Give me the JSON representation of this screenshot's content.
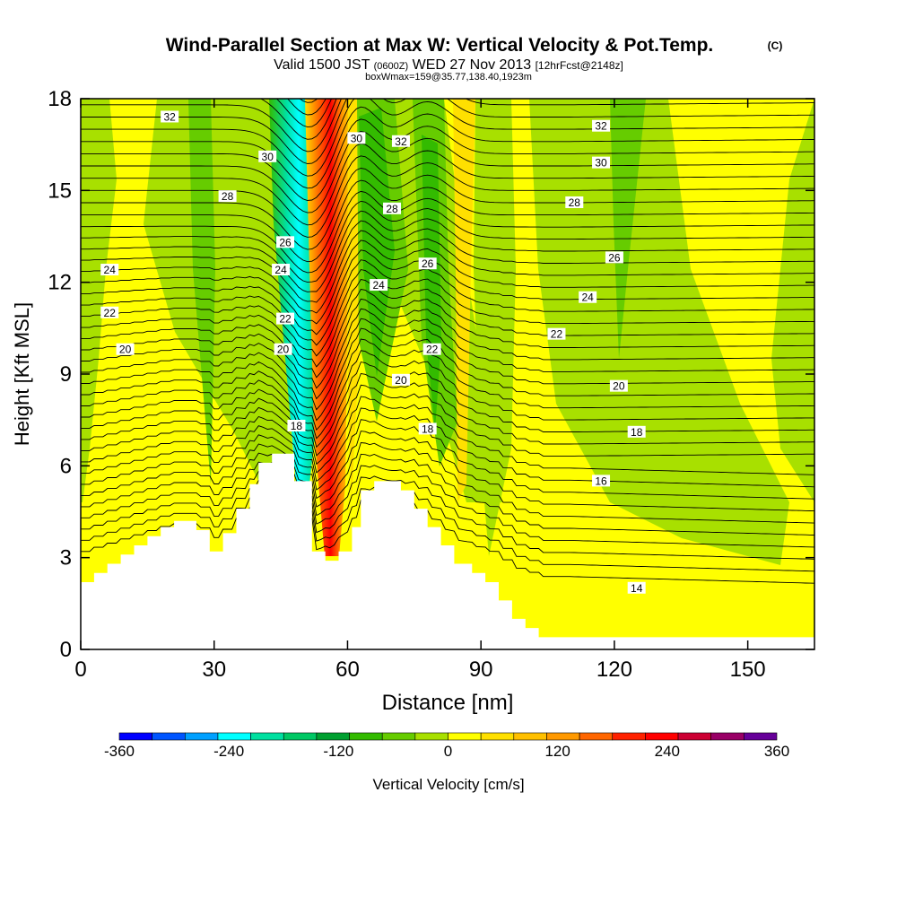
{
  "chart_data": {
    "type": "contour",
    "title": "Wind-Parallel Section at Max W: Vertical Velocity & Pot.Temp.",
    "title_mark": "(C)",
    "subtitle": {
      "valid": "Valid 1500 JST",
      "utc": "(0600Z)",
      "date": "WED 27 Nov 2013",
      "forecast": "[12hrFcst@2148z]"
    },
    "box_note": "boxWmax=159@35.77,138.40,1923m",
    "xlabel": "Distance [nm]",
    "ylabel": "Height [Kft MSL]",
    "xlim": [
      0,
      165
    ],
    "ylim": [
      0,
      18
    ],
    "x_ticks": [
      "0",
      "30",
      "60",
      "90",
      "120",
      "150"
    ],
    "y_ticks": [
      "0",
      "3",
      "6",
      "9",
      "12",
      "15",
      "18"
    ],
    "colorbar": {
      "label": "Vertical Velocity [cm/s]",
      "tick_labels": [
        "-360",
        "-240",
        "-120",
        "0",
        "120",
        "240",
        "360"
      ],
      "colors": [
        "#0000ff",
        "#0055ff",
        "#00a0ff",
        "#00ffff",
        "#00e0a0",
        "#00c864",
        "#00a030",
        "#33bb00",
        "#66cc00",
        "#a8e000",
        "#ffff00",
        "#ffe000",
        "#ffc000",
        "#ff9900",
        "#ff6600",
        "#ff2200",
        "#ff0000",
        "#cc0033",
        "#990066",
        "#660099"
      ]
    },
    "theta_label_units": "C",
    "theta_labels": [
      {
        "text": "32",
        "x": 20,
        "y": 17.4
      },
      {
        "text": "30",
        "x": 42,
        "y": 16.1
      },
      {
        "text": "28",
        "x": 33,
        "y": 14.8
      },
      {
        "text": "24",
        "x": 6.5,
        "y": 12.4
      },
      {
        "text": "22",
        "x": 6.5,
        "y": 11.0
      },
      {
        "text": "20",
        "x": 10,
        "y": 9.8
      },
      {
        "text": "26",
        "x": 46,
        "y": 13.3
      },
      {
        "text": "24",
        "x": 45,
        "y": 12.4
      },
      {
        "text": "22",
        "x": 46,
        "y": 10.8
      },
      {
        "text": "20",
        "x": 45.5,
        "y": 9.8
      },
      {
        "text": "18",
        "x": 48.5,
        "y": 7.3
      },
      {
        "text": "30",
        "x": 62,
        "y": 16.7
      },
      {
        "text": "32",
        "x": 72,
        "y": 16.6
      },
      {
        "text": "28",
        "x": 70,
        "y": 14.4
      },
      {
        "text": "26",
        "x": 78,
        "y": 12.6
      },
      {
        "text": "24",
        "x": 67,
        "y": 11.9
      },
      {
        "text": "22",
        "x": 79,
        "y": 9.8
      },
      {
        "text": "20",
        "x": 72,
        "y": 8.8
      },
      {
        "text": "18",
        "x": 78,
        "y": 7.2
      },
      {
        "text": "32",
        "x": 117,
        "y": 17.1
      },
      {
        "text": "30",
        "x": 117,
        "y": 15.9
      },
      {
        "text": "28",
        "x": 111,
        "y": 14.6
      },
      {
        "text": "26",
        "x": 120,
        "y": 12.8
      },
      {
        "text": "24",
        "x": 114,
        "y": 11.5
      },
      {
        "text": "22",
        "x": 107,
        "y": 10.3
      },
      {
        "text": "20",
        "x": 121,
        "y": 8.6
      },
      {
        "text": "18",
        "x": 125,
        "y": 7.1
      },
      {
        "text": "16",
        "x": 117,
        "y": 5.5
      },
      {
        "text": "14",
        "x": 125,
        "y": 2.0
      }
    ],
    "terrain": [
      [
        0,
        2.2
      ],
      [
        3,
        2.2
      ],
      [
        3,
        2.5
      ],
      [
        6,
        2.5
      ],
      [
        6,
        2.8
      ],
      [
        9,
        2.8
      ],
      [
        9,
        3.1
      ],
      [
        12,
        3.1
      ],
      [
        12,
        3.4
      ],
      [
        15,
        3.4
      ],
      [
        15,
        3.7
      ],
      [
        18,
        3.7
      ],
      [
        18,
        4.0
      ],
      [
        21,
        4.0
      ],
      [
        21,
        4.2
      ],
      [
        26,
        4.2
      ],
      [
        26,
        3.9
      ],
      [
        29,
        3.9
      ],
      [
        29,
        3.2
      ],
      [
        32,
        3.2
      ],
      [
        32,
        3.8
      ],
      [
        35,
        3.8
      ],
      [
        35,
        4.6
      ],
      [
        38,
        4.6
      ],
      [
        38,
        5.4
      ],
      [
        40,
        5.4
      ],
      [
        40,
        6.1
      ],
      [
        43,
        6.1
      ],
      [
        43,
        6.4
      ],
      [
        48,
        6.4
      ],
      [
        48,
        5.5
      ],
      [
        52,
        5.5
      ],
      [
        52,
        3.2
      ],
      [
        55,
        3.2
      ],
      [
        55,
        2.9
      ],
      [
        58,
        2.9
      ],
      [
        58,
        3.2
      ],
      [
        61,
        3.2
      ],
      [
        61,
        4.0
      ],
      [
        63,
        4.0
      ],
      [
        63,
        5.2
      ],
      [
        66,
        5.2
      ],
      [
        66,
        5.5
      ],
      [
        72,
        5.5
      ],
      [
        72,
        5.2
      ],
      [
        75,
        5.2
      ],
      [
        75,
        4.6
      ],
      [
        78,
        4.6
      ],
      [
        78,
        4.0
      ],
      [
        81,
        4.0
      ],
      [
        81,
        3.4
      ],
      [
        84,
        3.4
      ],
      [
        84,
        2.8
      ],
      [
        88,
        2.8
      ],
      [
        88,
        2.5
      ],
      [
        91,
        2.5
      ],
      [
        91,
        2.2
      ],
      [
        94,
        2.2
      ],
      [
        94,
        1.6
      ],
      [
        97,
        1.6
      ],
      [
        97,
        1.0
      ],
      [
        100,
        1.0
      ],
      [
        100,
        0.7
      ],
      [
        103,
        0.7
      ],
      [
        103,
        0.4
      ],
      [
        165,
        0.4
      ],
      [
        165,
        0
      ],
      [
        0,
        0
      ]
    ]
  }
}
